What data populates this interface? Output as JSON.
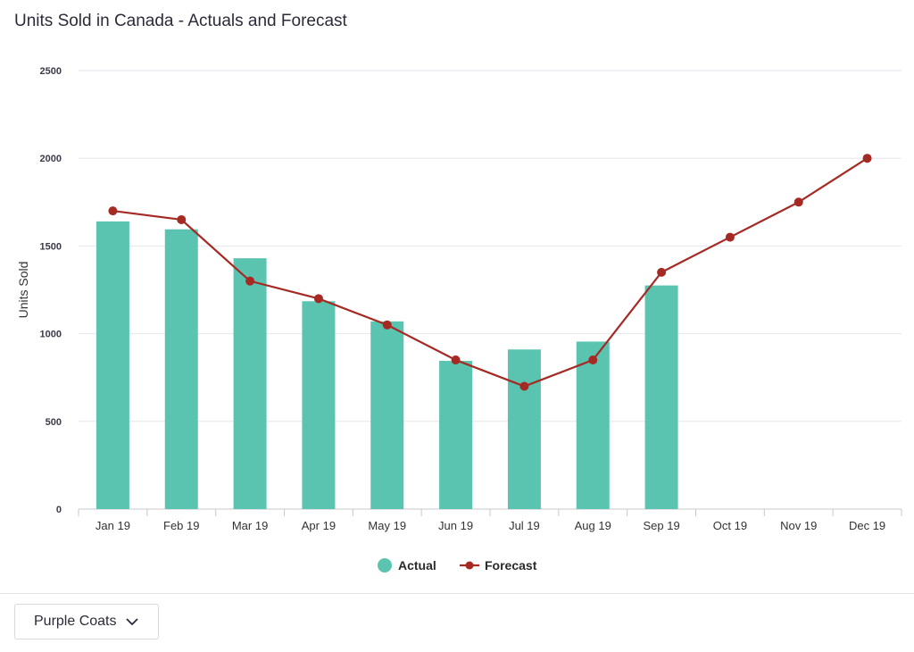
{
  "header": {
    "title": "Units Sold in Canada - Actuals and Forecast"
  },
  "chart_data": {
    "type": "bar",
    "title": "Units Sold in Canada - Actuals and Forecast",
    "xlabel": "",
    "ylabel": "Units Sold",
    "ylim": [
      0,
      2500
    ],
    "yticks": [
      "0",
      "500",
      "1000",
      "1500",
      "2000",
      "2500"
    ],
    "grid": true,
    "legend_position": "bottom-center",
    "categories": [
      "Jan 19",
      "Feb 19",
      "Mar 19",
      "Apr 19",
      "May 19",
      "Jun 19",
      "Jul 19",
      "Aug 19",
      "Sep 19",
      "Oct 19",
      "Nov 19",
      "Dec 19"
    ],
    "series": [
      {
        "name": "Actual",
        "type": "bar",
        "color": "#5bc4b0",
        "values": [
          1640,
          1595,
          1430,
          1185,
          1070,
          845,
          910,
          955,
          1275,
          null,
          null,
          null
        ]
      },
      {
        "name": "Forecast",
        "type": "line",
        "color": "#a52a24",
        "values": [
          1700,
          1650,
          1300,
          1200,
          1050,
          850,
          700,
          850,
          1350,
          1550,
          1750,
          2000
        ]
      }
    ]
  },
  "controls": {
    "dropdown_label": "Purple Coats",
    "dropdown_icon": "chevron-down-icon"
  }
}
